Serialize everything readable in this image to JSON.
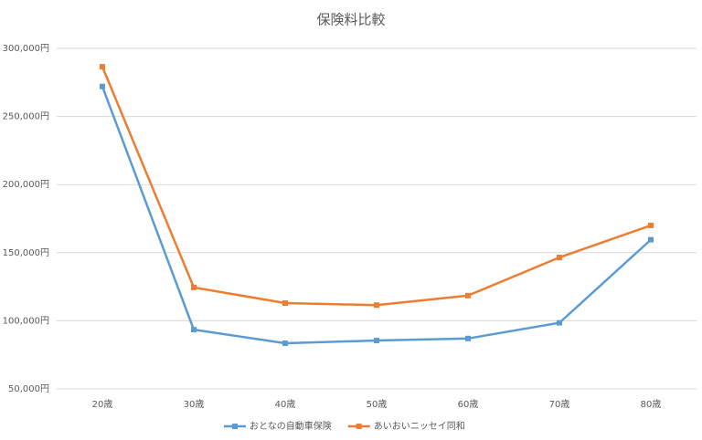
{
  "chart_data": {
    "type": "line",
    "title": "保険料比較",
    "categories": [
      "20歳",
      "30歳",
      "40歳",
      "50歳",
      "60歳",
      "70歳",
      "80歳"
    ],
    "series": [
      {
        "name": "おとなの自動車保険",
        "color": "#5b9bd5",
        "values": [
          272000,
          93500,
          83500,
          85500,
          87000,
          98500,
          159500
        ]
      },
      {
        "name": "あいおいニッセイ同和",
        "color": "#ed7d31",
        "values": [
          286500,
          124500,
          113000,
          111500,
          118500,
          146500,
          170000
        ]
      }
    ],
    "ylim": [
      50000,
      300000
    ],
    "yticks": [
      {
        "value": 50000,
        "label": "50,000円"
      },
      {
        "value": 100000,
        "label": "100,000円"
      },
      {
        "value": 150000,
        "label": "150,000円"
      },
      {
        "value": 200000,
        "label": "200,000円"
      },
      {
        "value": 250000,
        "label": "250,000円"
      },
      {
        "value": 300000,
        "label": "300,000円"
      }
    ],
    "grid": true
  }
}
